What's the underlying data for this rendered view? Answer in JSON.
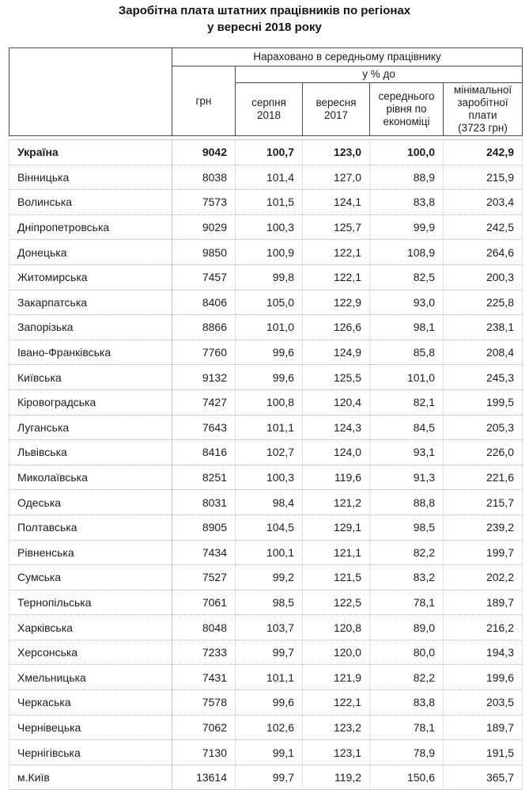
{
  "title": {
    "line1": "Заробітна плата штатних працівників по регіонах",
    "line2": "у вересні 2018 року"
  },
  "table": {
    "header": {
      "group_label": "Нараховано в середньому працівнику",
      "percent_label": "у % до",
      "columns": {
        "region": "",
        "hrn": "грн",
        "aug2018": "серпня\n2018",
        "sep2017": "вересня\n2017",
        "avg_economy": "середнього\nрівня по\nекономіці",
        "min_wage": "мінімальної\nзаробітної\nплати\n(3723 грн)"
      }
    },
    "rows": [
      {
        "region": "Україна",
        "hrn": "9042",
        "aug": "100,7",
        "sep": "123,0",
        "avg": "100,0",
        "min": "242,9",
        "bold": true
      },
      {
        "region": "Вінницька",
        "hrn": "8038",
        "aug": "101,4",
        "sep": "127,0",
        "avg": "88,9",
        "min": "215,9"
      },
      {
        "region": "Волинська",
        "hrn": "7573",
        "aug": "101,5",
        "sep": "124,1",
        "avg": "83,8",
        "min": "203,4"
      },
      {
        "region": "Дніпропетровська",
        "hrn": "9029",
        "aug": "100,3",
        "sep": "125,7",
        "avg": "99,9",
        "min": "242,5"
      },
      {
        "region": "Донецька",
        "hrn": "9850",
        "aug": "100,9",
        "sep": "122,1",
        "avg": "108,9",
        "min": "264,6"
      },
      {
        "region": "Житомирська",
        "hrn": "7457",
        "aug": "99,8",
        "sep": "122,1",
        "avg": "82,5",
        "min": "200,3"
      },
      {
        "region": "Закарпатська",
        "hrn": "8406",
        "aug": "105,0",
        "sep": "122,9",
        "avg": "93,0",
        "min": "225,8"
      },
      {
        "region": "Запорізька",
        "hrn": "8866",
        "aug": "101,0",
        "sep": "126,6",
        "avg": "98,1",
        "min": "238,1"
      },
      {
        "region": "Івано-Франківська",
        "hrn": "7760",
        "aug": "99,6",
        "sep": "124,9",
        "avg": "85,8",
        "min": "208,4"
      },
      {
        "region": "Київська",
        "hrn": "9132",
        "aug": "99,6",
        "sep": "125,5",
        "avg": "101,0",
        "min": "245,3"
      },
      {
        "region": "Кіровоградська",
        "hrn": "7427",
        "aug": "100,8",
        "sep": "120,4",
        "avg": "82,1",
        "min": "199,5"
      },
      {
        "region": "Луганська",
        "hrn": "7643",
        "aug": "101,1",
        "sep": "124,3",
        "avg": "84,5",
        "min": "205,3"
      },
      {
        "region": "Львівська",
        "hrn": "8416",
        "aug": "102,7",
        "sep": "124,0",
        "avg": "93,1",
        "min": "226,0"
      },
      {
        "region": "Миколаївська",
        "hrn": "8251",
        "aug": "100,3",
        "sep": "119,6",
        "avg": "91,3",
        "min": "221,6"
      },
      {
        "region": "Одеська",
        "hrn": "8031",
        "aug": "98,4",
        "sep": "121,2",
        "avg": "88,8",
        "min": "215,7"
      },
      {
        "region": "Полтавська",
        "hrn": "8905",
        "aug": "104,5",
        "sep": "129,1",
        "avg": "98,5",
        "min": "239,2"
      },
      {
        "region": "Рівненська",
        "hrn": "7434",
        "aug": "100,1",
        "sep": "121,1",
        "avg": "82,2",
        "min": "199,7"
      },
      {
        "region": "Сумська",
        "hrn": "7527",
        "aug": "99,2",
        "sep": "121,5",
        "avg": "83,2",
        "min": "202,2"
      },
      {
        "region": "Тернопільська",
        "hrn": "7061",
        "aug": "98,5",
        "sep": "122,5",
        "avg": "78,1",
        "min": "189,7"
      },
      {
        "region": "Харківська",
        "hrn": "8048",
        "aug": "103,7",
        "sep": "120,8",
        "avg": "89,0",
        "min": "216,2"
      },
      {
        "region": "Херсонська",
        "hrn": "7233",
        "aug": "99,7",
        "sep": "120,0",
        "avg": "80,0",
        "min": "194,3"
      },
      {
        "region": "Хмельницька",
        "hrn": "7431",
        "aug": "101,1",
        "sep": "121,9",
        "avg": "82,2",
        "min": "199,6"
      },
      {
        "region": "Черкаська",
        "hrn": "7578",
        "aug": "99,6",
        "sep": "122,1",
        "avg": "83,8",
        "min": "203,5"
      },
      {
        "region": "Чернівецька",
        "hrn": "7062",
        "aug": "102,6",
        "sep": "123,2",
        "avg": "78,1",
        "min": "189,7"
      },
      {
        "region": "Чернігівська",
        "hrn": "7130",
        "aug": "99,1",
        "sep": "123,1",
        "avg": "78,9",
        "min": "191,5"
      },
      {
        "region": "м.Київ",
        "hrn": "13614",
        "aug": "99,7",
        "sep": "119,2",
        "avg": "150,6",
        "min": "365,7"
      }
    ]
  },
  "colors": {
    "header_border": "#4a4a4a",
    "body_grid": "#b3b3b3",
    "text": "#1c1c1c",
    "background": "#ffffff"
  }
}
